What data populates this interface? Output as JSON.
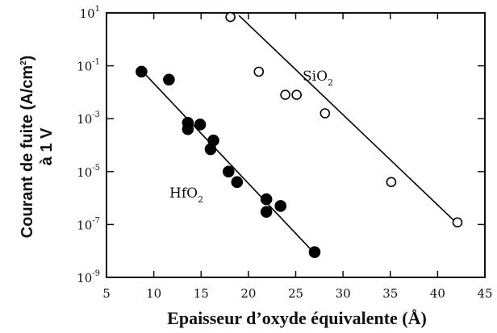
{
  "chart_data": {
    "type": "scatter",
    "xlabel": "Epaisseur d’oxyde équivalente (Å)",
    "ylabel_line1": "Courant de fuite (A/cm",
    "ylabel_sup": "2",
    "ylabel_close": ")",
    "ylabel_line2": "à 1 V",
    "xlim": [
      5,
      45
    ],
    "ylim_exponent": [
      -9,
      1
    ],
    "y_scale": "log",
    "x_ticks": [
      "5",
      "10",
      "15",
      "20",
      "25",
      "30",
      "35",
      "40",
      "45"
    ],
    "y_ticks": [
      {
        "base": "10",
        "exp": "1"
      },
      {
        "base": "10",
        "exp": "-1"
      },
      {
        "base": "10",
        "exp": "-3"
      },
      {
        "base": "10",
        "exp": "-5"
      },
      {
        "base": "10",
        "exp": "-7"
      },
      {
        "base": "10",
        "exp": "-9"
      }
    ],
    "series": [
      {
        "name": "HfO2",
        "label_main": "HfO",
        "label_sub": "2",
        "marker": "filled-circle",
        "color": "#000000",
        "points": [
          {
            "x": 8.7,
            "y": 0.06
          },
          {
            "x": 11.6,
            "y": 0.03
          },
          {
            "x": 13.6,
            "y": 0.0007
          },
          {
            "x": 13.6,
            "y": 0.0004
          },
          {
            "x": 14.9,
            "y": 0.0006
          },
          {
            "x": 16.0,
            "y": 7e-05
          },
          {
            "x": 16.3,
            "y": 0.00015
          },
          {
            "x": 17.9,
            "y": 1e-05
          },
          {
            "x": 18.8,
            "y": 4e-06
          },
          {
            "x": 21.9,
            "y": 9e-07
          },
          {
            "x": 21.9,
            "y": 3e-07
          },
          {
            "x": 23.4,
            "y": 5e-07
          },
          {
            "x": 27.0,
            "y": 9e-09
          }
        ],
        "fit": [
          {
            "x": 8.5,
            "y": 0.08
          },
          {
            "x": 27.0,
            "y": 8e-09
          }
        ]
      },
      {
        "name": "SiO2",
        "label_main": "SiO",
        "label_sub": "2",
        "marker": "open-circle",
        "color": "#000000",
        "points": [
          {
            "x": 18.1,
            "y": 7
          },
          {
            "x": 21.1,
            "y": 0.06
          },
          {
            "x": 23.9,
            "y": 0.008
          },
          {
            "x": 25.1,
            "y": 0.008
          },
          {
            "x": 28.1,
            "y": 0.0016
          },
          {
            "x": 35.1,
            "y": 4e-06
          },
          {
            "x": 42.1,
            "y": 1.2e-07
          }
        ],
        "fit": [
          {
            "x": 19.0,
            "y": 8
          },
          {
            "x": 42.3,
            "y": 9e-08
          }
        ]
      }
    ]
  }
}
